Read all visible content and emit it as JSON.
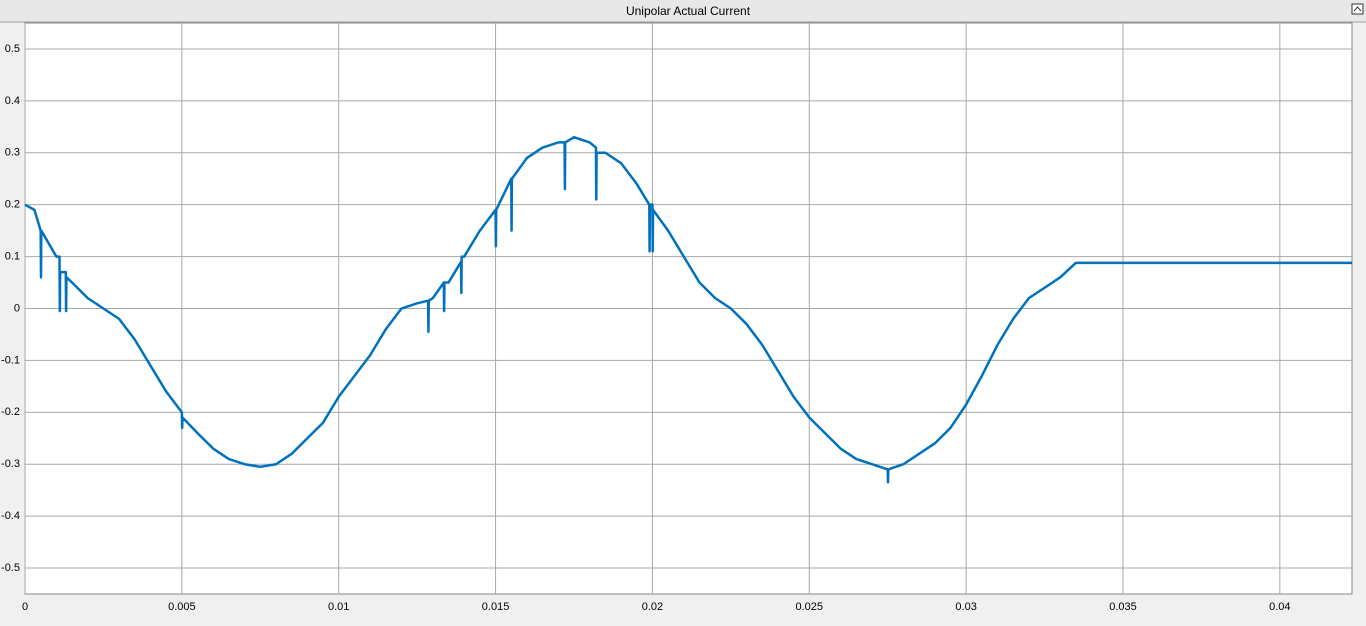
{
  "chart_data": {
    "type": "line",
    "title": "Unipolar Actual Current",
    "x": [
      0,
      0.0003,
      0.0005,
      0.00051,
      0.00052,
      0.001,
      0.0011,
      0.00111,
      0.00112,
      0.0013,
      0.00131,
      0.00132,
      0.0015,
      0.002,
      0.0025,
      0.003,
      0.0035,
      0.004,
      0.0045,
      0.005,
      0.00501,
      0.00502,
      0.0055,
      0.006,
      0.0065,
      0.007,
      0.0075,
      0.008,
      0.0085,
      0.009,
      0.0095,
      0.01,
      0.0105,
      0.011,
      0.0115,
      0.012,
      0.0125,
      0.01285,
      0.01286,
      0.01287,
      0.013,
      0.01335,
      0.01336,
      0.01337,
      0.0135,
      0.0139,
      0.01391,
      0.01392,
      0.014,
      0.0145,
      0.015,
      0.01501,
      0.01502,
      0.0155,
      0.01551,
      0.01552,
      0.016,
      0.0165,
      0.017,
      0.0172,
      0.01721,
      0.01722,
      0.0175,
      0.018,
      0.0182,
      0.01821,
      0.01822,
      0.0185,
      0.019,
      0.0195,
      0.0199,
      0.01991,
      0.01992,
      0.02,
      0.02001,
      0.02002,
      0.0205,
      0.021,
      0.0215,
      0.022,
      0.0225,
      0.023,
      0.0235,
      0.024,
      0.0245,
      0.025,
      0.0255,
      0.026,
      0.0265,
      0.027,
      0.0275,
      0.02751,
      0.02752,
      0.028,
      0.0285,
      0.029,
      0.0295,
      0.03,
      0.0305,
      0.031,
      0.0315,
      0.032,
      0.0325,
      0.033,
      0.0335,
      0.0423
    ],
    "series": [
      {
        "name": "Unipolar Actual Current",
        "color": "#0072bd",
        "values": [
          0.2,
          0.19,
          0.15,
          0.06,
          0.15,
          0.1,
          0.1,
          -0.005,
          0.07,
          0.07,
          -0.005,
          0.06,
          0.05,
          0.02,
          0.0,
          -0.02,
          -0.06,
          -0.11,
          -0.16,
          -0.2,
          -0.23,
          -0.21,
          -0.24,
          -0.27,
          -0.29,
          -0.3,
          -0.305,
          -0.3,
          -0.28,
          -0.25,
          -0.22,
          -0.17,
          -0.13,
          -0.09,
          -0.04,
          0.0,
          0.01,
          0.015,
          -0.045,
          0.015,
          0.02,
          0.05,
          -0.005,
          0.05,
          0.05,
          0.09,
          0.03,
          0.1,
          0.1,
          0.15,
          0.19,
          0.12,
          0.19,
          0.25,
          0.15,
          0.25,
          0.29,
          0.31,
          0.32,
          0.32,
          0.23,
          0.32,
          0.33,
          0.32,
          0.31,
          0.21,
          0.3,
          0.3,
          0.28,
          0.24,
          0.2,
          0.11,
          0.2,
          0.2,
          0.11,
          0.19,
          0.15,
          0.1,
          0.05,
          0.02,
          0.0,
          -0.03,
          -0.07,
          -0.12,
          -0.17,
          -0.21,
          -0.24,
          -0.27,
          -0.29,
          -0.3,
          -0.31,
          -0.335,
          -0.31,
          -0.3,
          -0.28,
          -0.26,
          -0.23,
          -0.185,
          -0.13,
          -0.07,
          -0.02,
          0.02,
          0.04,
          0.06,
          0.088,
          0.088
        ]
      }
    ],
    "xlim": [
      0,
      0.0423
    ],
    "ylim": [
      -0.55,
      0.55
    ],
    "xticks": [
      0,
      0.005,
      0.01,
      0.015,
      0.02,
      0.025,
      0.03,
      0.035,
      0.04
    ],
    "yticks": [
      -0.5,
      -0.4,
      -0.3,
      -0.2,
      -0.1,
      0,
      0.1,
      0.2,
      0.3,
      0.4,
      0.5
    ],
    "grid": true
  }
}
